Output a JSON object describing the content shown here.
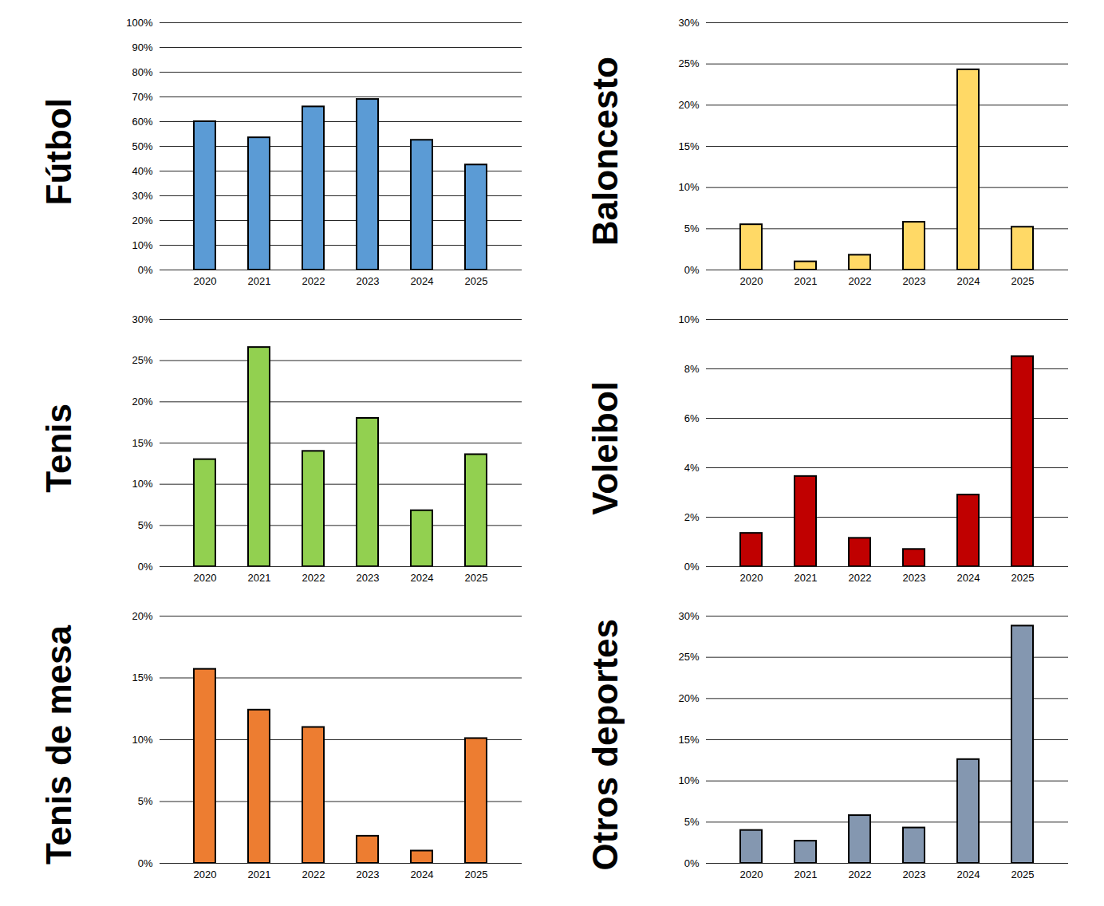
{
  "chart_data": [
    {
      "type": "bar",
      "title": "Fútbol",
      "categories": [
        "2020",
        "2021",
        "2022",
        "2023",
        "2024",
        "2025"
      ],
      "values": [
        60,
        53.5,
        66,
        69,
        52.5,
        42.5
      ],
      "color": "#5b9bd5",
      "ylim": [
        0,
        100
      ],
      "yticks": [
        {
          "value": 0,
          "label": "0%"
        },
        {
          "value": 10,
          "label": "10%"
        },
        {
          "value": 20,
          "label": "20%"
        },
        {
          "value": 30,
          "label": "30%"
        },
        {
          "value": 40,
          "label": "40%"
        },
        {
          "value": 50,
          "label": "50%"
        },
        {
          "value": 60,
          "label": "60%"
        },
        {
          "value": 70,
          "label": "70%"
        },
        {
          "value": 80,
          "label": "80%"
        },
        {
          "value": 90,
          "label": "90%"
        },
        {
          "value": 100,
          "label": "100%"
        }
      ],
      "grid": true
    },
    {
      "type": "bar",
      "title": "Baloncesto",
      "categories": [
        "2020",
        "2021",
        "2022",
        "2023",
        "2024",
        "2025"
      ],
      "values": [
        5.5,
        1,
        1.8,
        5.8,
        24.3,
        5.2
      ],
      "color": "#ffd966",
      "ylim": [
        0,
        30
      ],
      "yticks": [
        {
          "value": 0,
          "label": "0%"
        },
        {
          "value": 5,
          "label": "5%"
        },
        {
          "value": 10,
          "label": "10%"
        },
        {
          "value": 15,
          "label": "15%"
        },
        {
          "value": 20,
          "label": "20%"
        },
        {
          "value": 25,
          "label": "25%"
        },
        {
          "value": 30,
          "label": "30%"
        }
      ],
      "grid": true
    },
    {
      "type": "bar",
      "title": "Tenis",
      "categories": [
        "2020",
        "2021",
        "2022",
        "2023",
        "2024",
        "2025"
      ],
      "values": [
        13,
        26.6,
        14,
        18,
        6.8,
        13.6
      ],
      "color": "#92d050",
      "ylim": [
        0,
        30
      ],
      "yticks": [
        {
          "value": 0,
          "label": "0%"
        },
        {
          "value": 5,
          "label": "5%"
        },
        {
          "value": 10,
          "label": "10%"
        },
        {
          "value": 15,
          "label": "15%"
        },
        {
          "value": 20,
          "label": "20%"
        },
        {
          "value": 25,
          "label": "25%"
        },
        {
          "value": 30,
          "label": "30%"
        }
      ],
      "grid": true
    },
    {
      "type": "bar",
      "title": "Voleibol",
      "categories": [
        "2020",
        "2021",
        "2022",
        "2023",
        "2024",
        "2025"
      ],
      "values": [
        1.35,
        3.65,
        1.15,
        0.7,
        2.9,
        8.5
      ],
      "color": "#c00000",
      "ylim": [
        0,
        10
      ],
      "yticks": [
        {
          "value": 0,
          "label": "0%"
        },
        {
          "value": 2,
          "label": "2%"
        },
        {
          "value": 4,
          "label": "4%"
        },
        {
          "value": 6,
          "label": "6%"
        },
        {
          "value": 8,
          "label": "8%"
        },
        {
          "value": 10,
          "label": "10%"
        }
      ],
      "grid": true
    },
    {
      "type": "bar",
      "title": "Tenis de mesa",
      "categories": [
        "2020",
        "2021",
        "2022",
        "2023",
        "2024",
        "2025"
      ],
      "values": [
        15.7,
        12.4,
        11,
        2.2,
        1,
        10.1
      ],
      "color": "#ed7d31",
      "ylim": [
        0,
        20
      ],
      "yticks": [
        {
          "value": 0,
          "label": "0%"
        },
        {
          "value": 5,
          "label": "5%"
        },
        {
          "value": 10,
          "label": "10%"
        },
        {
          "value": 15,
          "label": "15%"
        },
        {
          "value": 20,
          "label": "20%"
        }
      ],
      "grid": true
    },
    {
      "type": "bar",
      "title": "Otros deportes",
      "categories": [
        "2020",
        "2021",
        "2022",
        "2023",
        "2024",
        "2025"
      ],
      "values": [
        4,
        2.7,
        5.8,
        4.3,
        12.6,
        28.8
      ],
      "color": "#8497b0",
      "ylim": [
        0,
        30
      ],
      "yticks": [
        {
          "value": 0,
          "label": "0%"
        },
        {
          "value": 5,
          "label": "5%"
        },
        {
          "value": 10,
          "label": "10%"
        },
        {
          "value": 15,
          "label": "15%"
        },
        {
          "value": 20,
          "label": "20%"
        },
        {
          "value": 25,
          "label": "25%"
        },
        {
          "value": 30,
          "label": "30%"
        }
      ],
      "grid": true
    }
  ]
}
